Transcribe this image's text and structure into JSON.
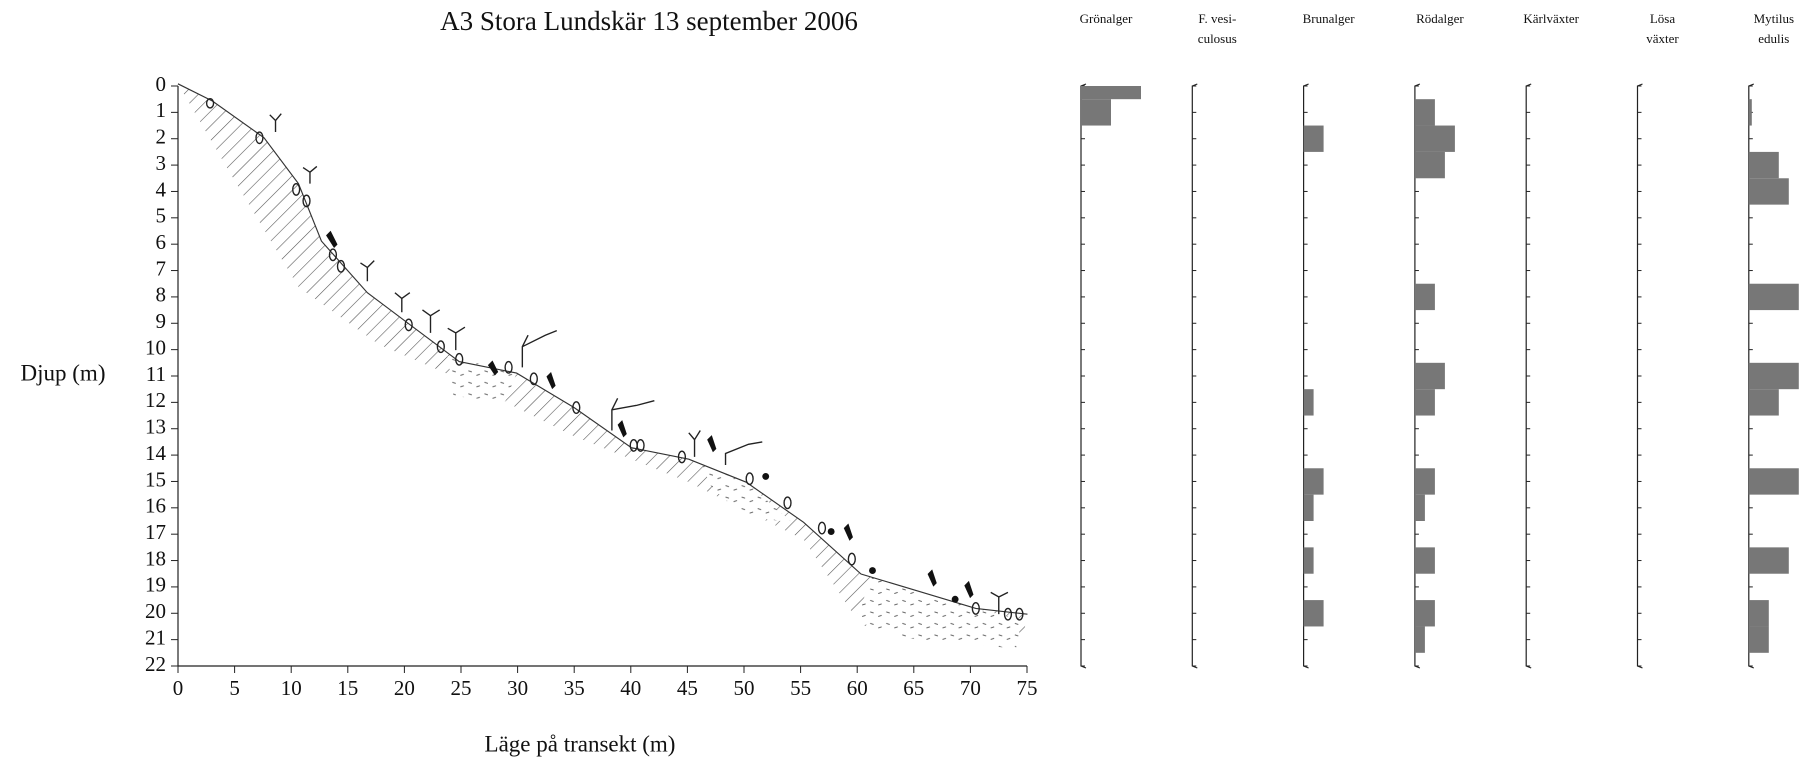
{
  "chart_data": [
    {
      "type": "profile",
      "title": "A3 Stora Lundskär 13 september 2006",
      "xlabel": "Läge på transekt (m)",
      "ylabel": "Djup (m)",
      "xlim": [
        0,
        75
      ],
      "xticks": [
        0,
        5,
        10,
        15,
        20,
        25,
        30,
        35,
        40,
        45,
        50,
        55,
        60,
        65,
        70,
        75
      ],
      "ylim": [
        0,
        22
      ],
      "yticks": [
        0,
        1,
        2,
        3,
        4,
        5,
        6,
        7,
        8,
        9,
        10,
        11,
        12,
        13,
        14,
        15,
        16,
        17,
        18,
        19,
        20,
        21,
        22
      ]
    },
    {
      "type": "bar-panels",
      "xlim": [
        0,
        10
      ],
      "categories": [
        0,
        1,
        2,
        3,
        4,
        5,
        6,
        7,
        8,
        9,
        10,
        11,
        12,
        13,
        14,
        15,
        16,
        17,
        18,
        19,
        20,
        21,
        22
      ],
      "series": [
        {
          "name": "Grönalger",
          "color": "#777777",
          "values": [
            6,
            3,
            0,
            0,
            0,
            0,
            0,
            0,
            0,
            0,
            0,
            0,
            0,
            0,
            0,
            0,
            0,
            0,
            0,
            0,
            0,
            0,
            0
          ]
        },
        {
          "name": "F. vesi-\nculosus",
          "color": "#777777",
          "values": [
            0,
            0,
            0,
            0,
            0,
            0,
            0,
            0,
            0,
            0,
            0,
            0,
            0,
            0,
            0,
            0,
            0,
            0,
            0,
            0,
            0,
            0,
            0
          ]
        },
        {
          "name": "Brunalger",
          "color": "#777777",
          "values": [
            0,
            0,
            2,
            0,
            0,
            0,
            0,
            0,
            0,
            0,
            0,
            0,
            1,
            0,
            0,
            2,
            1,
            0,
            1,
            0,
            2,
            0,
            0
          ]
        },
        {
          "name": "Rödalger",
          "color": "#777777",
          "values": [
            0,
            2,
            4,
            3,
            0,
            0,
            0,
            0,
            2,
            0,
            0,
            3,
            2,
            0,
            0,
            2,
            1,
            0,
            2,
            0,
            2,
            1,
            0
          ]
        },
        {
          "name": "Kärlväxter",
          "color": "#777777",
          "values": [
            0,
            0,
            0,
            0,
            0,
            0,
            0,
            0,
            0,
            0,
            0,
            0,
            0,
            0,
            0,
            0,
            0,
            0,
            0,
            0,
            0,
            0,
            0
          ]
        },
        {
          "name": "Lösa\nväxter",
          "color": "#777777",
          "values": [
            0,
            0,
            0,
            0,
            0,
            0,
            0,
            0,
            0,
            0,
            0,
            0,
            0,
            0,
            0,
            0,
            0,
            0,
            0,
            0,
            0,
            0,
            0
          ]
        },
        {
          "name": "Mytilus\nedulis",
          "color": "#777777",
          "values": [
            0,
            0.3,
            0,
            3,
            4,
            0,
            0,
            0,
            5,
            0,
            0,
            5,
            3,
            0,
            0,
            5,
            0,
            0,
            4,
            0,
            2,
            2,
            0
          ]
        }
      ]
    }
  ]
}
